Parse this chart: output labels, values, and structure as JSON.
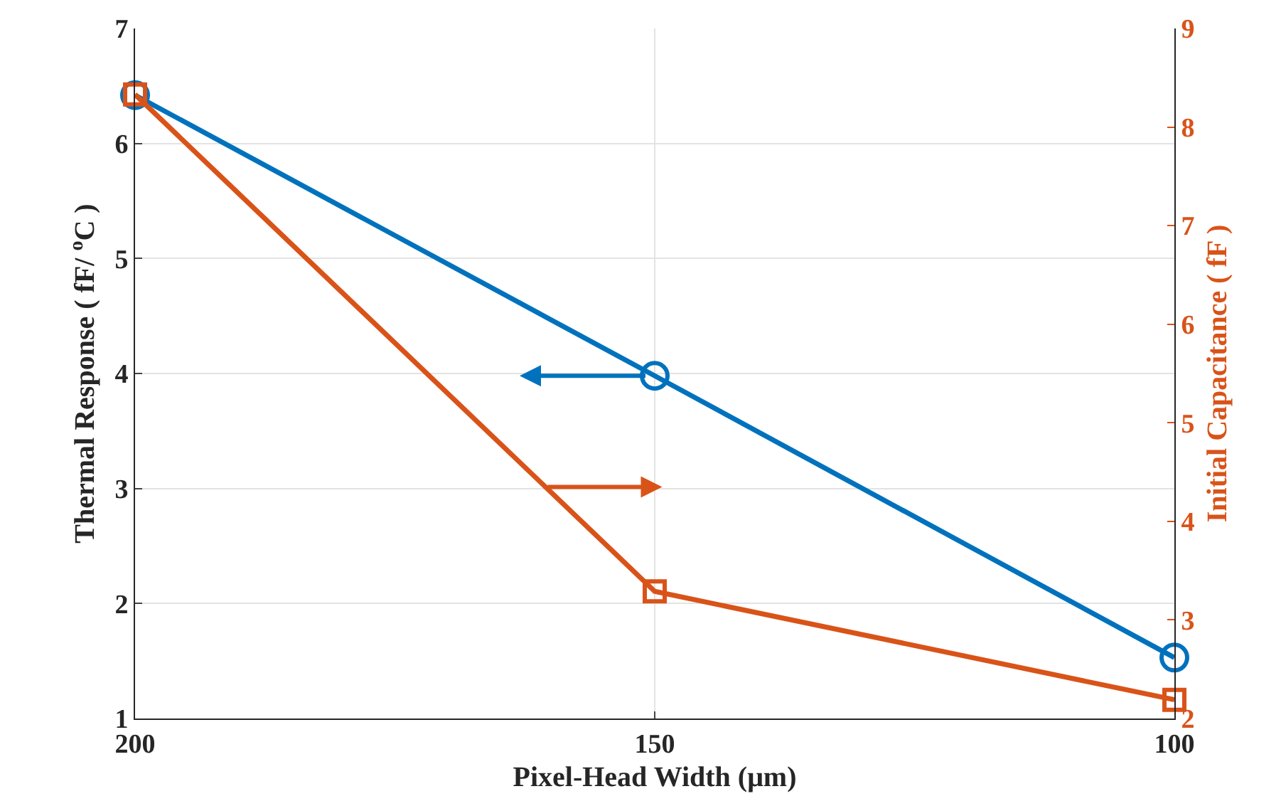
{
  "chart_data": {
    "type": "line",
    "xlabel": "Pixel-Head Width (μm)",
    "ylabel": "Thermal Response ( fF/ $^{o}$C )",
    "y2label": "Initial Capacitance ( fF )",
    "x": [
      200,
      150,
      100
    ],
    "xlim": [
      200,
      100
    ],
    "xticks": [
      200,
      150,
      100
    ],
    "ylim": [
      1,
      7
    ],
    "yticks": [
      1,
      2,
      3,
      4,
      5,
      6,
      7
    ],
    "y2lim": [
      2,
      9
    ],
    "y2ticks": [
      2,
      3,
      4,
      5,
      6,
      7,
      8,
      9
    ],
    "grid": true,
    "line_style": "solid",
    "series": [
      {
        "color": "#0072bd",
        "values": [
          6.42,
          3.98,
          1.53
        ],
        "marker": "circle"
      },
      {
        "color": "#d95319",
        "values": [
          8.33,
          3.29,
          2.19
        ],
        "marker": "square",
        "axis": "y2"
      }
    ]
  }
}
